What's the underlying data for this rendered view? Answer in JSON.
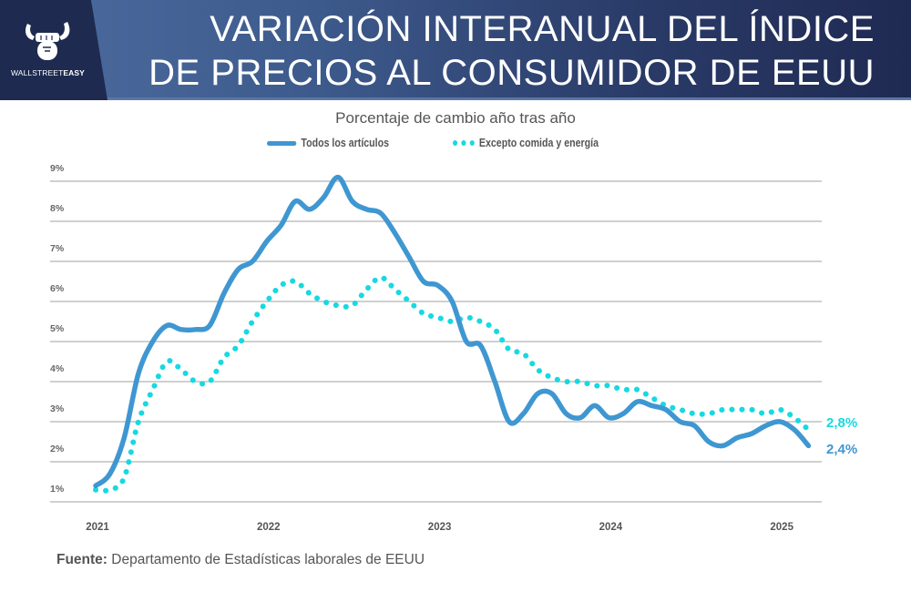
{
  "header": {
    "title_line1": "VARIACIÓN INTERANUAL DEL ÍNDICE",
    "title_line2": "DE PRECIOS AL CONSUMIDOR DE EEUU",
    "logo_text_regular": "WALLSTREET",
    "logo_text_bold": "EASY",
    "logo_icon": "bull-fist-icon"
  },
  "colors": {
    "all_items": "#3f97d1",
    "core": "#16d9e1",
    "grid": "#b5b5b5",
    "text": "#555555"
  },
  "source": {
    "label": "Fuente:",
    "text": " Departamento de Estadísticas laborales de EEUU"
  },
  "chart_data": {
    "type": "line",
    "title": "Porcentaje de cambio año tras año",
    "xlabel": "",
    "ylabel": "",
    "ylim": [
      1,
      9
    ],
    "yticks": [
      1,
      2,
      3,
      4,
      5,
      6,
      7,
      8,
      9
    ],
    "ytick_labels": [
      "1%",
      "2%",
      "3%",
      "4%",
      "5%",
      "6%",
      "7%",
      "8%",
      "9%"
    ],
    "xtick_labels": [
      "2021",
      "2022",
      "2023",
      "2024",
      "2025"
    ],
    "xtick_month_index": [
      0,
      12,
      24,
      36,
      48
    ],
    "x": [
      "2021-01",
      "2021-02",
      "2021-03",
      "2021-04",
      "2021-05",
      "2021-06",
      "2021-07",
      "2021-08",
      "2021-09",
      "2021-10",
      "2021-11",
      "2021-12",
      "2022-01",
      "2022-02",
      "2022-03",
      "2022-04",
      "2022-05",
      "2022-06",
      "2022-07",
      "2022-08",
      "2022-09",
      "2022-10",
      "2022-11",
      "2022-12",
      "2023-01",
      "2023-02",
      "2023-03",
      "2023-04",
      "2023-05",
      "2023-06",
      "2023-07",
      "2023-08",
      "2023-09",
      "2023-10",
      "2023-11",
      "2023-12",
      "2024-01",
      "2024-02",
      "2024-03",
      "2024-04",
      "2024-05",
      "2024-06",
      "2024-07",
      "2024-08",
      "2024-09",
      "2024-10",
      "2024-11",
      "2024-12",
      "2025-01",
      "2025-02",
      "2025-03"
    ],
    "grid": true,
    "legend_position": "top",
    "series": [
      {
        "name": "Todos los artículos",
        "style": "solid",
        "values": [
          1.4,
          1.7,
          2.6,
          4.2,
          5.0,
          5.4,
          5.3,
          5.3,
          5.4,
          6.2,
          6.8,
          7.0,
          7.5,
          7.9,
          8.5,
          8.3,
          8.6,
          9.1,
          8.5,
          8.3,
          8.2,
          7.7,
          7.1,
          6.5,
          6.4,
          6.0,
          5.0,
          4.9,
          4.0,
          3.0,
          3.2,
          3.7,
          3.7,
          3.2,
          3.1,
          3.4,
          3.1,
          3.2,
          3.5,
          3.4,
          3.3,
          3.0,
          2.9,
          2.5,
          2.4,
          2.6,
          2.7,
          2.9,
          3.0,
          2.8,
          2.4
        ],
        "end_label": "2,4%"
      },
      {
        "name": "Excepto comida y energía",
        "style": "dotted",
        "values": [
          1.3,
          1.3,
          1.6,
          3.0,
          3.8,
          4.5,
          4.3,
          4.0,
          4.0,
          4.6,
          4.9,
          5.5,
          6.0,
          6.4,
          6.5,
          6.2,
          6.0,
          5.9,
          5.9,
          6.3,
          6.6,
          6.3,
          6.0,
          5.7,
          5.6,
          5.5,
          5.6,
          5.5,
          5.3,
          4.8,
          4.7,
          4.3,
          4.1,
          4.0,
          4.0,
          3.9,
          3.9,
          3.8,
          3.8,
          3.6,
          3.4,
          3.3,
          3.2,
          3.2,
          3.3,
          3.3,
          3.3,
          3.2,
          3.3,
          3.1,
          2.8
        ],
        "end_label": "2,8%"
      }
    ]
  }
}
